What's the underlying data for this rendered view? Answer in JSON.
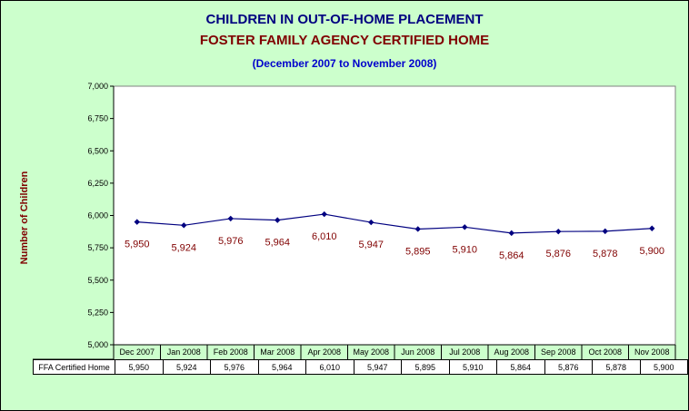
{
  "chart_data": {
    "type": "line",
    "title": "CHILDREN IN OUT-OF-HOME PLACEMENT",
    "subtitle": "FOSTER FAMILY AGENCY CERTIFIED HOME",
    "period": "(December 2007 to November 2008)",
    "ylabel": "Number of Children",
    "xlabel": "",
    "ylim": [
      5000,
      7000
    ],
    "yticks": [
      5000,
      5250,
      5500,
      5750,
      6000,
      6250,
      6500,
      6750,
      7000
    ],
    "ytick_labels": [
      "5,000",
      "5,250",
      "5,500",
      "5,750",
      "6,000",
      "6,250",
      "6,500",
      "6,750",
      "7,000"
    ],
    "categories": [
      "Dec 2007",
      "Jan 2008",
      "Feb 2008",
      "Mar 2008",
      "Apr 2008",
      "May 2008",
      "Jun 2008",
      "Jul 2008",
      "Aug 2008",
      "Sep 2008",
      "Oct 2008",
      "Nov 2008"
    ],
    "series": [
      {
        "name": "FFA Certified Home",
        "values": [
          5950,
          5924,
          5976,
          5964,
          6010,
          5947,
          5895,
          5910,
          5864,
          5876,
          5878,
          5900
        ],
        "labels": [
          "5,950",
          "5,924",
          "5,976",
          "5,964",
          "6,010",
          "5,947",
          "5,895",
          "5,910",
          "5,864",
          "5,876",
          "5,878",
          "5,900"
        ],
        "color": "#000080",
        "marker": "diamond"
      }
    ],
    "data_label_color": "#800000",
    "grid": false,
    "legend": "data table below chart",
    "background": "#ccffcc",
    "plot_background": "#ffffff"
  }
}
